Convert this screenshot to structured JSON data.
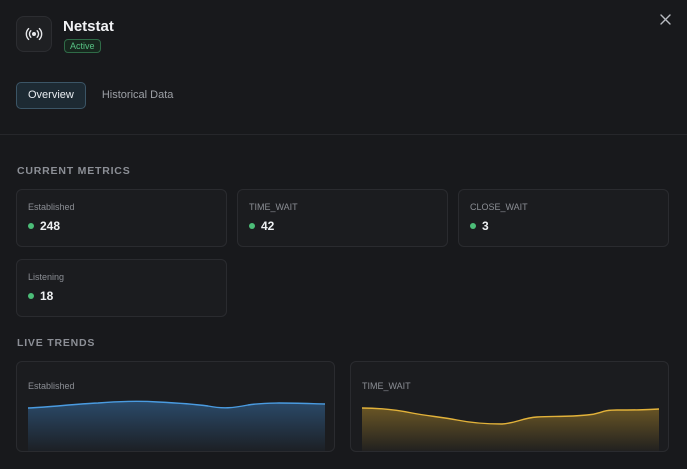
{
  "header": {
    "title": "Netstat",
    "status": "Active",
    "icon": "broadcast-icon",
    "close_icon": "close-icon"
  },
  "tabs": [
    {
      "label": "Overview",
      "active": true
    },
    {
      "label": "Historical Data",
      "active": false
    }
  ],
  "metrics": {
    "title": "CURRENT METRICS",
    "items": [
      {
        "label": "Established",
        "value": "248"
      },
      {
        "label": "TIME_WAIT",
        "value": "42"
      },
      {
        "label": "CLOSE_WAIT",
        "value": "3"
      },
      {
        "label": "Listening",
        "value": "18"
      }
    ]
  },
  "trends": {
    "title": "LIVE TRENDS",
    "items": [
      {
        "label": "Established",
        "color": "#4a9be0"
      },
      {
        "label": "TIME_WAIT",
        "color": "#e2b23a"
      }
    ]
  },
  "colors": {
    "accent": "#4cbd78",
    "established_line": "#4a9be0",
    "time_wait_line": "#e2b23a"
  }
}
